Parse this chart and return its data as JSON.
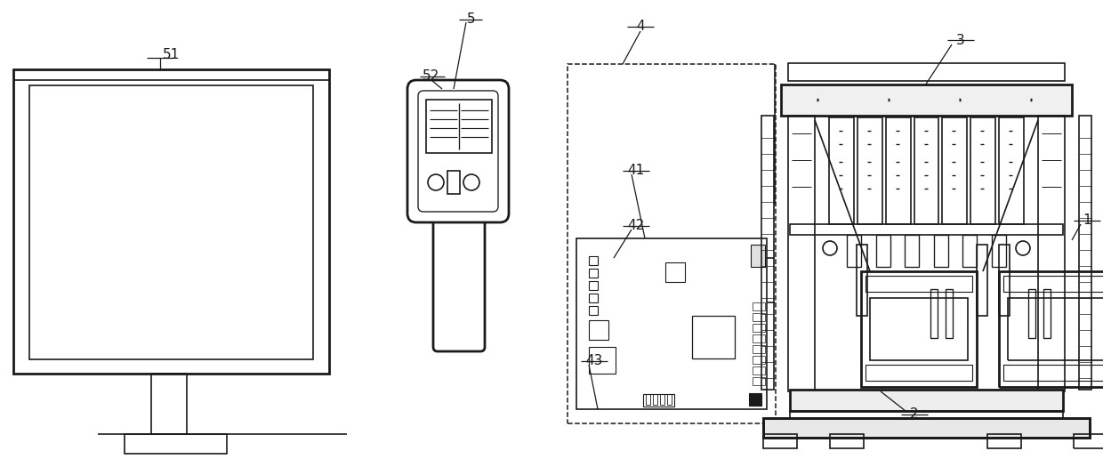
{
  "bg_color": "#ffffff",
  "line_color": "#1a1a1a",
  "lw": 1.2,
  "lw2": 2.0,
  "lw3": 3.0
}
